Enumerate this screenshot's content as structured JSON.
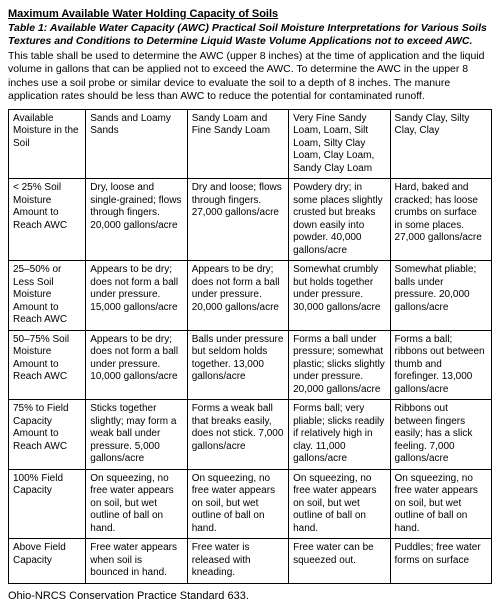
{
  "title": "Maximum Available Water Holding Capacity of Soils",
  "subtitle": "Table 1: Available Water Capacity (AWC) Practical Soil Moisture Interpretations for Various Soils Textures and Conditions to Determine Liquid Waste Volume Applications not to exceed AWC.",
  "intro": "This table shall be used to determine the AWC (upper 8 inches) at the time of application and the liquid volume in gallons that can be applied not to exceed the AWC. To determine the AWC in the upper 8 inches use a soil probe or similar device to evaluate the soil to a depth of 8 inches. The manure application rates should be less than AWC to reduce the potential for contaminated runoff.",
  "columns": [
    "Available Moisture in the Soil",
    "Sands and Loamy Sands",
    "Sandy Loam and Fine Sandy Loam",
    "Very Fine Sandy Loam, Loam, Silt Loam, Silty Clay Loam, Clay Loam, Sandy Clay Loam",
    "Sandy Clay, Silty Clay, Clay"
  ],
  "rows": [
    [
      "< 25% Soil Moisture Amount to Reach AWC",
      "Dry, loose and single-grained; flows through fingers. 20,000 gallons/acre",
      "Dry and loose; flows through fingers. 27,000 gallons/acre",
      "Powdery dry; in some places slightly crusted but breaks down easily into powder. 40,000 gallons/acre",
      "Hard, baked and cracked; has loose crumbs on surface in some places. 27,000 gallons/acre"
    ],
    [
      "25–50% or Less Soil Moisture Amount to Reach AWC",
      "Appears to be dry; does not form a ball under pressure. 15,000 gallons/acre",
      "Appears to be dry; does not form a ball under pressure. 20,000 gallons/acre",
      "Somewhat crumbly but holds together under pressure. 30,000 gallons/acre",
      "Somewhat pliable; balls under pressure. 20,000 gallons/acre"
    ],
    [
      "50–75% Soil Moisture Amount to Reach AWC",
      "Appears to be dry; does not form a ball under pressure. 10,000 gallons/acre",
      "Balls under pressure but seldom holds together. 13,000 gallons/acre",
      "Forms a ball under pressure; somewhat plastic; slicks slightly under pressure. 20,000 gallons/acre",
      "Forms a ball; ribbons out between thumb and forefinger. 13,000 gallons/acre"
    ],
    [
      "75% to Field Capacity Amount to Reach AWC",
      "Sticks together slightly; may form a weak ball under pressure. 5,000 gallons/acre",
      "Forms a weak ball that breaks easily, does not stick. 7,000 gallons/acre",
      "Forms ball; very pliable; slicks readily if relatively high in clay. 11,000 gallons/acre",
      "Ribbons out between fingers easily; has a slick feeling. 7,000 gallons/acre"
    ],
    [
      "100% Field Capacity",
      "On squeezing, no free water appears on soil, but wet outline of ball on hand.",
      "On squeezing, no free water appears on soil, but wet outline of ball on hand.",
      "On squeezing, no free water appears on soil, but wet outline of ball on hand.",
      "On squeezing, no free water appears on soil, but wet outline of ball on hand."
    ],
    [
      "Above Field Capacity",
      "Free water appears when soil is bounced in hand.",
      "Free water is released with kneading.",
      "Free water can be squeezed out.",
      "Puddles; free water forms on surface"
    ]
  ],
  "footer": "Ohio-NRCS Conservation Practice Standard 633."
}
